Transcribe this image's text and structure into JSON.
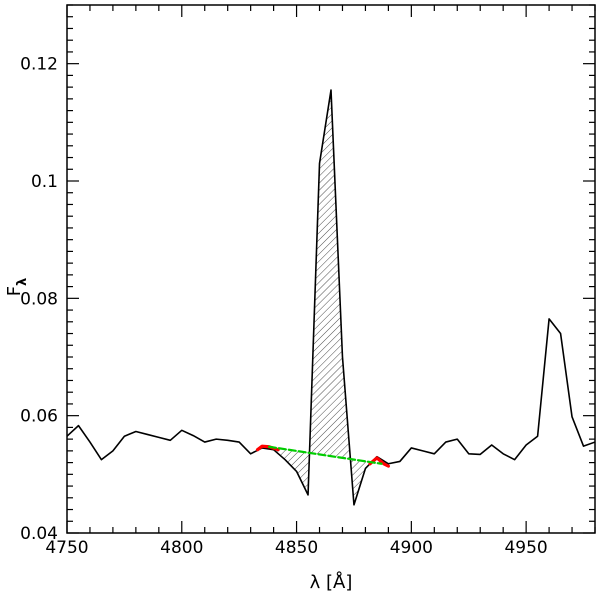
{
  "chart_data": {
    "type": "line",
    "title": "",
    "xlabel": "λ [Å]",
    "ylabel_main": "F",
    "ylabel_sub": "λ",
    "xlim": [
      4750,
      4980
    ],
    "ylim": [
      0.04,
      0.13
    ],
    "xticks": [
      4750,
      4800,
      4850,
      4900,
      4950
    ],
    "xtick_labels": [
      "4750",
      "4800",
      "4850",
      "4900",
      "4950"
    ],
    "yticks": [
      0.04,
      0.06,
      0.08,
      0.1,
      0.12
    ],
    "ytick_labels": [
      "0.04",
      "0.06",
      "0.08",
      "0.1",
      "0.12"
    ],
    "grid": false,
    "series": [
      {
        "role": "spectrum",
        "color": "#000000",
        "x": [
          4750,
          4755,
          4760,
          4765,
          4770,
          4775,
          4780,
          4785,
          4790,
          4795,
          4800,
          4805,
          4810,
          4815,
          4820,
          4825,
          4830,
          4835,
          4840,
          4845,
          4850,
          4855,
          4860,
          4865,
          4870,
          4875,
          4880,
          4885,
          4890,
          4895,
          4900,
          4905,
          4910,
          4915,
          4920,
          4925,
          4930,
          4935,
          4940,
          4945,
          4950,
          4955,
          4960,
          4965,
          4970,
          4975,
          4980
        ],
        "y": [
          0.0565,
          0.0583,
          0.0555,
          0.0525,
          0.054,
          0.0565,
          0.0573,
          0.0568,
          0.0563,
          0.0558,
          0.0575,
          0.0566,
          0.0555,
          0.056,
          0.0558,
          0.0555,
          0.0535,
          0.0545,
          0.0542,
          0.0525,
          0.0505,
          0.0465,
          0.103,
          0.1155,
          0.07,
          0.0448,
          0.051,
          0.053,
          0.0518,
          0.0522,
          0.0545,
          0.054,
          0.0535,
          0.0555,
          0.056,
          0.0535,
          0.0534,
          0.055,
          0.0535,
          0.0525,
          0.055,
          0.0565,
          0.0765,
          0.074,
          0.0598,
          0.0548,
          0.0555
        ]
      },
      {
        "role": "continuum-left",
        "color": "#ff0000",
        "x": [
          4833,
          4835,
          4838,
          4842
        ],
        "y": [
          0.0542,
          0.0548,
          0.0547,
          0.0542
        ]
      },
      {
        "role": "continuum-right",
        "color": "#ff0000",
        "x": [
          4882,
          4885,
          4888,
          4890
        ],
        "y": [
          0.0518,
          0.0528,
          0.0518,
          0.0514
        ]
      },
      {
        "role": "continuum-fit",
        "color": "#00cc00",
        "style": "dashed",
        "x": [
          4838,
          4887
        ],
        "y": [
          0.0547,
          0.0518
        ]
      }
    ],
    "shaded_region": {
      "style": "hatched",
      "x_range": [
        4838,
        4887
      ]
    }
  }
}
